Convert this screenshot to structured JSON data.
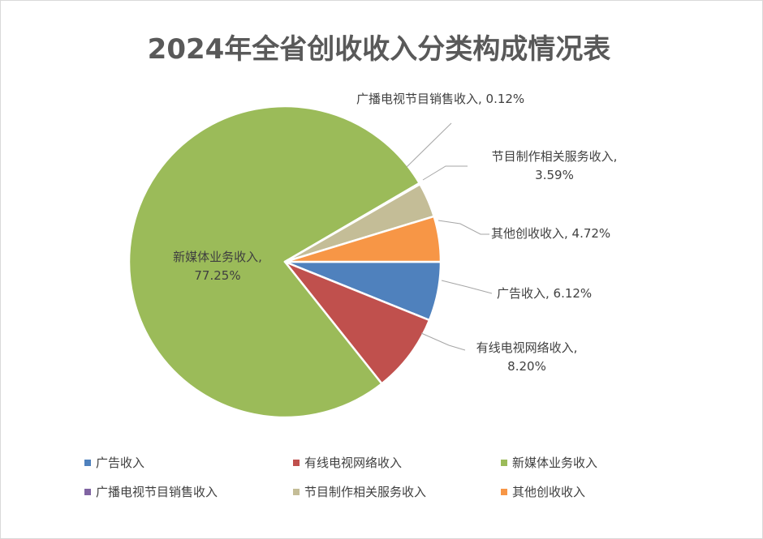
{
  "chart_data": {
    "type": "pie",
    "title": "2024年全省创收收入分类构成情况表",
    "slices": [
      {
        "name": "广告收入",
        "value": 6.12,
        "label": "6.12%",
        "color": "#4F81BD"
      },
      {
        "name": "有线电视网络收入",
        "value": 8.2,
        "label": "8.20%",
        "color": "#C0504D"
      },
      {
        "name": "新媒体业务收入",
        "value": 77.25,
        "label": "77.25%",
        "color": "#9BBB59"
      },
      {
        "name": "广播电视节目销售收入",
        "value": 0.12,
        "label": "0.12%",
        "color": "#8064A2"
      },
      {
        "name": "节目制作相关服务收入",
        "value": 3.59,
        "label": "3.59%",
        "color": "#C4BD97"
      },
      {
        "name": "其他创收收入",
        "value": 4.72,
        "label": "4.72%",
        "color": "#F79646"
      }
    ],
    "legend": {
      "position": "bottom"
    }
  }
}
